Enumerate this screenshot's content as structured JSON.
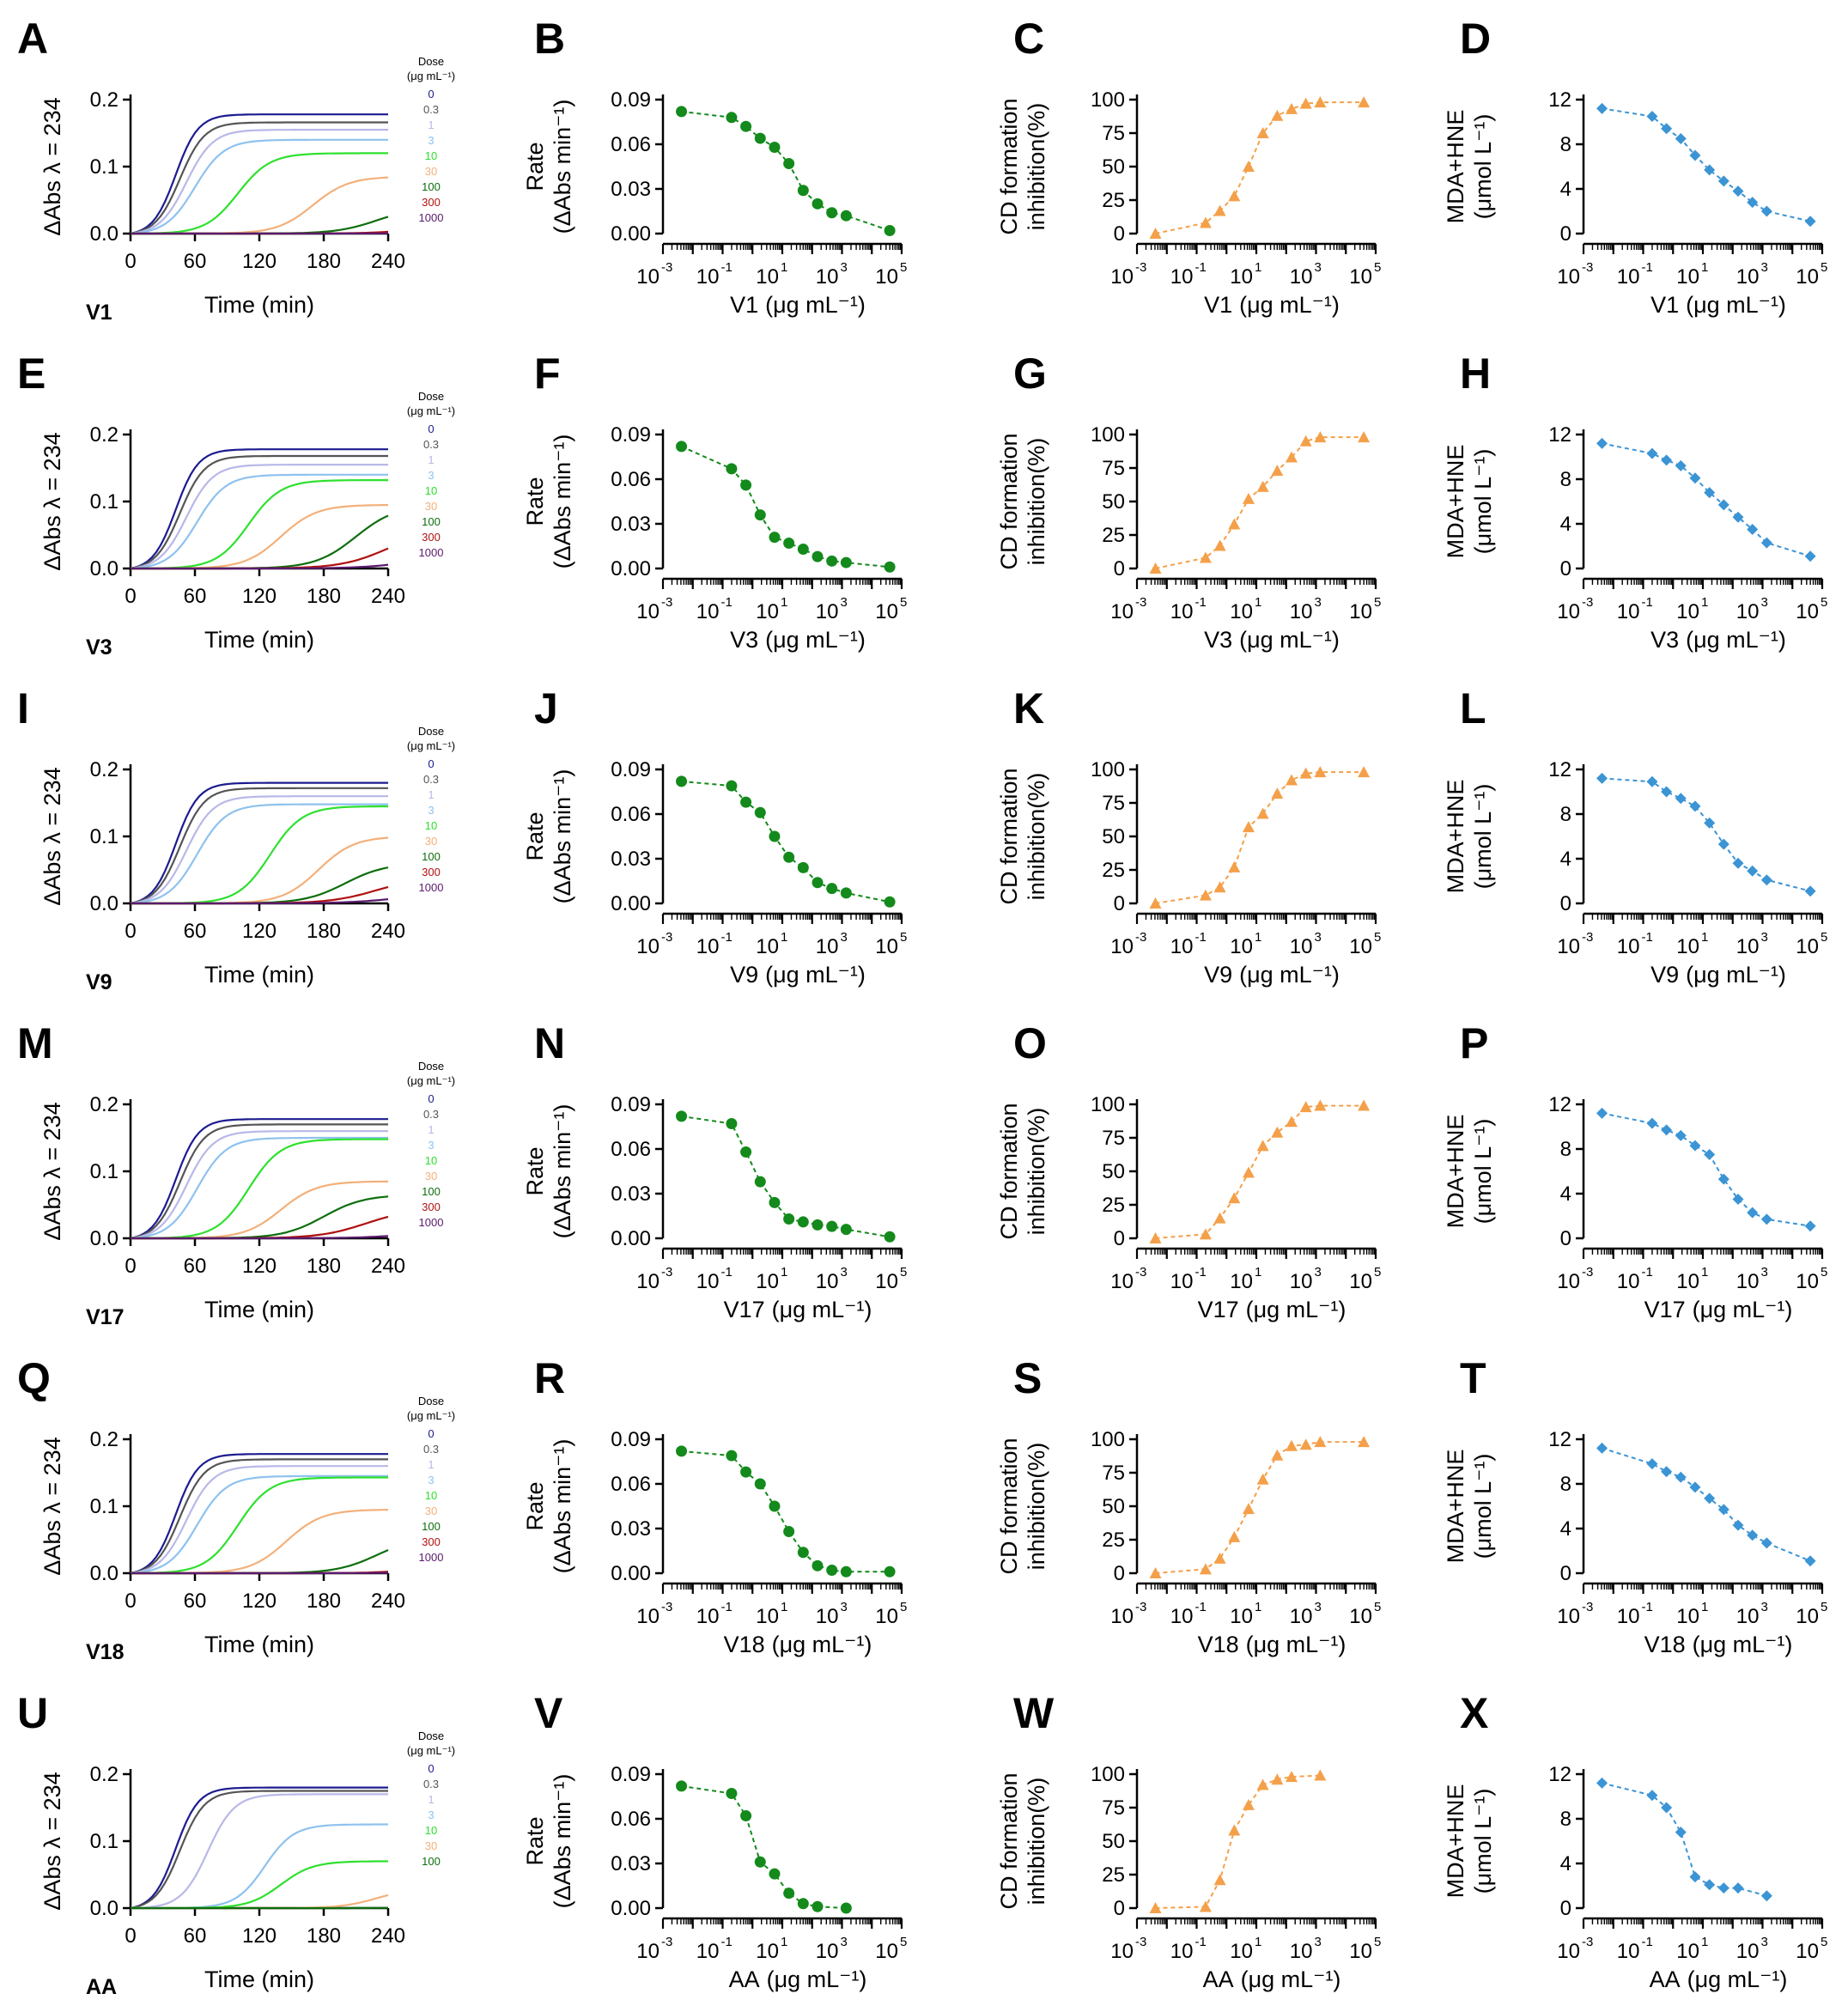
{
  "chart_data": {
    "type": "multi-panel",
    "legend": {
      "title_line1": "Dose",
      "title_line2": "(μg mL⁻¹)"
    },
    "kinetic_axes": {
      "xlabel": "Time (min)",
      "ylabel": "ΔAbs λ = 234",
      "xticks": [
        "0",
        "60",
        "120",
        "180",
        "240"
      ],
      "xlim": [
        0,
        240
      ],
      "yticks": [
        "0.0",
        "0.1",
        "0.2"
      ],
      "ylim": [
        0,
        0.2
      ]
    },
    "dose_axes": {
      "x_scale": "log10",
      "xlim_exp": [
        -3,
        5
      ],
      "xtick_base": "10",
      "xtick_exponents": [
        "-3",
        "-1",
        "1",
        "3",
        "5"
      ],
      "x_unit": "(μg mL⁻¹)"
    },
    "rate_axes": {
      "ylabel1": "Rate",
      "ylabel2": "(ΔAbs min⁻¹)",
      "yticks": [
        "0.00",
        "0.03",
        "0.06",
        "0.09"
      ],
      "ylim": [
        0,
        0.09
      ],
      "color": "#138a1b"
    },
    "cd_axes": {
      "ylabel1": "CD formation",
      "ylabel2": "inhibition(%)",
      "yticks": [
        "0",
        "25",
        "50",
        "75",
        "100"
      ],
      "ylim": [
        0,
        100
      ],
      "color": "#f4a04a"
    },
    "mda_axes": {
      "ylabel1": "MDA+HNE",
      "ylabel2": "(μmol L⁻¹)",
      "yticks": [
        "0",
        "4",
        "8",
        "12"
      ],
      "ylim": [
        0,
        12
      ],
      "color": "#3b94d4"
    },
    "rows": [
      {
        "compound": "V1",
        "letters": [
          "A",
          "B",
          "C",
          "D"
        ],
        "doses": [
          "0",
          "0.3",
          "1",
          "3",
          "10",
          "30",
          "100",
          "300",
          "1000"
        ],
        "dose_colors": [
          "#1b1b8f",
          "#555555",
          "#b8b8e8",
          "#8ec2ee",
          "#2ee02e",
          "#f3b07a",
          "#0d6e0d",
          "#b01010",
          "#5a1a6e"
        ],
        "plateaus": [
          0.178,
          0.166,
          0.155,
          0.14,
          0.12,
          0.085,
          0.04,
          0.02,
          0.012
        ],
        "midpoints": [
          42,
          46,
          52,
          60,
          100,
          170,
          230,
          280,
          330
        ],
        "x_exp": [
          -2.38,
          -0.7,
          -0.22,
          0.26,
          0.74,
          1.22,
          1.7,
          2.18,
          2.66,
          3.14,
          4.6
        ],
        "rate": [
          0.082,
          0.078,
          0.072,
          0.064,
          0.058,
          0.047,
          0.029,
          0.02,
          0.014,
          0.012,
          0.002
        ],
        "cd": [
          0,
          8,
          17,
          28,
          50,
          75,
          88,
          93,
          97,
          98,
          98
        ],
        "mda": [
          11.2,
          10.5,
          9.4,
          8.5,
          7.0,
          5.7,
          4.7,
          3.8,
          2.8,
          2.0,
          1.1
        ]
      },
      {
        "compound": "V3",
        "letters": [
          "E",
          "F",
          "G",
          "H"
        ],
        "doses": [
          "0",
          "0.3",
          "1",
          "3",
          "10",
          "30",
          "100",
          "300",
          "1000"
        ],
        "dose_colors": [
          "#1b1b8f",
          "#555555",
          "#b8b8e8",
          "#8ec2ee",
          "#2ee02e",
          "#f3b07a",
          "#0d6e0d",
          "#b01010",
          "#5a1a6e"
        ],
        "plateaus": [
          0.178,
          0.168,
          0.155,
          0.14,
          0.132,
          0.095,
          0.095,
          0.06,
          0.045
        ],
        "midpoints": [
          42,
          46,
          52,
          62,
          110,
          140,
          210,
          240,
          290
        ],
        "x_exp": [
          -2.38,
          -0.7,
          -0.22,
          0.26,
          0.74,
          1.22,
          1.7,
          2.18,
          2.66,
          3.14,
          4.6
        ],
        "rate": [
          0.082,
          0.067,
          0.056,
          0.036,
          0.021,
          0.017,
          0.013,
          0.008,
          0.005,
          0.004,
          0.001
        ],
        "cd": [
          0,
          8,
          17,
          33,
          52,
          61,
          73,
          83,
          95,
          98,
          98
        ],
        "mda": [
          11.2,
          10.3,
          9.7,
          9.2,
          8.1,
          6.8,
          5.7,
          4.6,
          3.5,
          2.3,
          1.1
        ]
      },
      {
        "compound": "V9",
        "letters": [
          "I",
          "J",
          "K",
          "L"
        ],
        "doses": [
          "0",
          "0.3",
          "1",
          "3",
          "10",
          "30",
          "100",
          "300",
          "1000"
        ],
        "dose_colors": [
          "#1b1b8f",
          "#555555",
          "#b8b8e8",
          "#8ec2ee",
          "#2ee02e",
          "#f3b07a",
          "#0d6e0d",
          "#b01010",
          "#5a1a6e"
        ],
        "plateaus": [
          0.18,
          0.172,
          0.16,
          0.148,
          0.145,
          0.1,
          0.06,
          0.04,
          0.02
        ],
        "midpoints": [
          42,
          46,
          52,
          62,
          130,
          175,
          200,
          230,
          260
        ],
        "x_exp": [
          -2.38,
          -0.7,
          -0.22,
          0.26,
          0.74,
          1.22,
          1.7,
          2.18,
          2.66,
          3.14,
          4.6
        ],
        "rate": [
          0.082,
          0.079,
          0.068,
          0.061,
          0.045,
          0.031,
          0.024,
          0.014,
          0.01,
          0.007,
          0.001
        ],
        "cd": [
          0,
          6,
          12,
          27,
          57,
          67,
          82,
          92,
          97,
          98,
          98
        ],
        "mda": [
          11.2,
          10.9,
          10.0,
          9.4,
          8.7,
          7.2,
          5.3,
          3.6,
          2.9,
          2.1,
          1.1
        ]
      },
      {
        "compound": "V17",
        "letters": [
          "M",
          "N",
          "O",
          "P"
        ],
        "doses": [
          "0",
          "0.3",
          "1",
          "3",
          "10",
          "30",
          "100",
          "300",
          "1000"
        ],
        "dose_colors": [
          "#1b1b8f",
          "#555555",
          "#b8b8e8",
          "#8ec2ee",
          "#2ee02e",
          "#f3b07a",
          "#0d6e0d",
          "#b01010",
          "#5a1a6e"
        ],
        "plateaus": [
          0.178,
          0.17,
          0.16,
          0.15,
          0.148,
          0.085,
          0.065,
          0.045,
          0.02
        ],
        "midpoints": [
          42,
          46,
          52,
          62,
          110,
          140,
          180,
          220,
          280
        ],
        "x_exp": [
          -2.38,
          -0.7,
          -0.22,
          0.26,
          0.74,
          1.22,
          1.7,
          2.18,
          2.66,
          3.14,
          4.6
        ],
        "rate": [
          0.082,
          0.077,
          0.058,
          0.038,
          0.024,
          0.013,
          0.011,
          0.009,
          0.008,
          0.006,
          0.001
        ],
        "cd": [
          0,
          3,
          15,
          30,
          49,
          69,
          79,
          87,
          98,
          99,
          99
        ],
        "mda": [
          11.2,
          10.3,
          9.7,
          9.2,
          8.3,
          7.5,
          5.3,
          3.5,
          2.3,
          1.7,
          1.1
        ]
      },
      {
        "compound": "V18",
        "letters": [
          "Q",
          "R",
          "S",
          "T"
        ],
        "doses": [
          "0",
          "0.3",
          "1",
          "3",
          "10",
          "30",
          "100",
          "300",
          "1000"
        ],
        "dose_colors": [
          "#1b1b8f",
          "#555555",
          "#b8b8e8",
          "#8ec2ee",
          "#2ee02e",
          "#f3b07a",
          "#0d6e0d",
          "#b01010",
          "#5a1a6e"
        ],
        "plateaus": [
          0.178,
          0.17,
          0.16,
          0.145,
          0.143,
          0.095,
          0.055,
          0.025,
          0.015
        ],
        "midpoints": [
          42,
          46,
          52,
          62,
          100,
          145,
          230,
          290,
          320
        ],
        "x_exp": [
          -2.38,
          -0.7,
          -0.22,
          0.26,
          0.74,
          1.22,
          1.7,
          2.18,
          2.66,
          3.14,
          4.6
        ],
        "rate": [
          0.082,
          0.079,
          0.068,
          0.06,
          0.045,
          0.028,
          0.014,
          0.005,
          0.002,
          0.001,
          0.001
        ],
        "cd": [
          0,
          3,
          11,
          27,
          48,
          70,
          88,
          95,
          96,
          98,
          98
        ],
        "mda": [
          11.2,
          9.8,
          9.1,
          8.6,
          7.7,
          6.7,
          5.7,
          4.3,
          3.4,
          2.7,
          1.1
        ]
      },
      {
        "compound": "AA",
        "letters": [
          "U",
          "V",
          "W",
          "X"
        ],
        "doses": [
          "0",
          "0.3",
          "1",
          "3",
          "10",
          "30",
          "100"
        ],
        "dose_colors": [
          "#1b1b8f",
          "#555555",
          "#b8b8e8",
          "#8ec2ee",
          "#2ee02e",
          "#f3b07a",
          "#0d6e0d"
        ],
        "plateaus": [
          0.18,
          0.175,
          0.17,
          0.125,
          0.07,
          0.03,
          0.01
        ],
        "midpoints": [
          42,
          46,
          72,
          125,
          140,
          230,
          300
        ],
        "x_exp": [
          -2.38,
          -0.7,
          -0.22,
          0.26,
          0.74,
          1.22,
          1.7,
          2.18,
          3.14
        ],
        "rate": [
          0.082,
          0.077,
          0.062,
          0.031,
          0.023,
          0.01,
          0.003,
          0.001,
          0.0
        ],
        "cd": [
          0,
          1,
          21,
          58,
          77,
          92,
          96,
          98,
          99
        ],
        "mda": [
          11.2,
          10.1,
          9.0,
          6.8,
          2.8,
          2.1,
          1.8,
          1.8,
          1.1
        ]
      }
    ]
  }
}
